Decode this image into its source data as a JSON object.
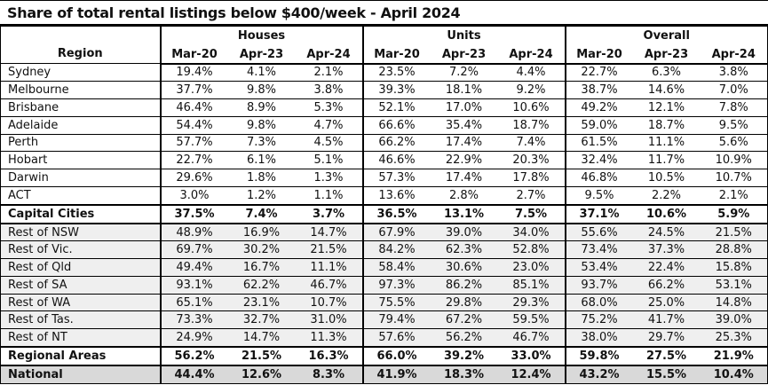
{
  "title": "Share of total rental listings below $400/week - April 2024",
  "colors": {
    "border": "#000000",
    "text": "#111111",
    "shaded_row": "#efefef",
    "national_row": "#d9d9d9",
    "background": "#ffffff"
  },
  "chart_data": {
    "type": "table",
    "title": "Share of total rental listings below $400/week - April 2024",
    "region_header": "Region",
    "groups": [
      "Houses",
      "Units",
      "Overall"
    ],
    "sub_columns": [
      "Mar-20",
      "Apr-23",
      "Apr-24"
    ],
    "rows": [
      {
        "region": "Sydney",
        "style": "normal",
        "houses": [
          "19.4%",
          "4.1%",
          "2.1%"
        ],
        "units": [
          "23.5%",
          "7.2%",
          "4.4%"
        ],
        "overall": [
          "22.7%",
          "6.3%",
          "3.8%"
        ]
      },
      {
        "region": "Melbourne",
        "style": "normal",
        "houses": [
          "37.7%",
          "9.8%",
          "3.8%"
        ],
        "units": [
          "39.3%",
          "18.1%",
          "9.2%"
        ],
        "overall": [
          "38.7%",
          "14.6%",
          "7.0%"
        ]
      },
      {
        "region": "Brisbane",
        "style": "normal",
        "houses": [
          "46.4%",
          "8.9%",
          "5.3%"
        ],
        "units": [
          "52.1%",
          "17.0%",
          "10.6%"
        ],
        "overall": [
          "49.2%",
          "12.1%",
          "7.8%"
        ]
      },
      {
        "region": "Adelaide",
        "style": "normal",
        "houses": [
          "54.4%",
          "9.8%",
          "4.7%"
        ],
        "units": [
          "66.6%",
          "35.4%",
          "18.7%"
        ],
        "overall": [
          "59.0%",
          "18.7%",
          "9.5%"
        ]
      },
      {
        "region": "Perth",
        "style": "normal",
        "houses": [
          "57.7%",
          "7.3%",
          "4.5%"
        ],
        "units": [
          "66.2%",
          "17.4%",
          "7.4%"
        ],
        "overall": [
          "61.5%",
          "11.1%",
          "5.6%"
        ]
      },
      {
        "region": "Hobart",
        "style": "normal",
        "houses": [
          "22.7%",
          "6.1%",
          "5.1%"
        ],
        "units": [
          "46.6%",
          "22.9%",
          "20.3%"
        ],
        "overall": [
          "32.4%",
          "11.7%",
          "10.9%"
        ]
      },
      {
        "region": "Darwin",
        "style": "normal",
        "houses": [
          "29.6%",
          "1.8%",
          "1.3%"
        ],
        "units": [
          "57.3%",
          "17.4%",
          "17.8%"
        ],
        "overall": [
          "46.8%",
          "10.5%",
          "10.7%"
        ]
      },
      {
        "region": "ACT",
        "style": "normal",
        "houses": [
          "3.0%",
          "1.2%",
          "1.1%"
        ],
        "units": [
          "13.6%",
          "2.8%",
          "2.7%"
        ],
        "overall": [
          "9.5%",
          "2.2%",
          "2.1%"
        ]
      },
      {
        "region": "Capital Cities",
        "style": "bold",
        "houses": [
          "37.5%",
          "7.4%",
          "3.7%"
        ],
        "units": [
          "36.5%",
          "13.1%",
          "7.5%"
        ],
        "overall": [
          "37.1%",
          "10.6%",
          "5.9%"
        ]
      },
      {
        "region": "Rest of NSW",
        "style": "shaded",
        "houses": [
          "48.9%",
          "16.9%",
          "14.7%"
        ],
        "units": [
          "67.9%",
          "39.0%",
          "34.0%"
        ],
        "overall": [
          "55.6%",
          "24.5%",
          "21.5%"
        ]
      },
      {
        "region": "Rest of Vic.",
        "style": "shaded",
        "houses": [
          "69.7%",
          "30.2%",
          "21.5%"
        ],
        "units": [
          "84.2%",
          "62.3%",
          "52.8%"
        ],
        "overall": [
          "73.4%",
          "37.3%",
          "28.8%"
        ]
      },
      {
        "region": "Rest of Qld",
        "style": "shaded",
        "houses": [
          "49.4%",
          "16.7%",
          "11.1%"
        ],
        "units": [
          "58.4%",
          "30.6%",
          "23.0%"
        ],
        "overall": [
          "53.4%",
          "22.4%",
          "15.8%"
        ]
      },
      {
        "region": "Rest of SA",
        "style": "shaded",
        "houses": [
          "93.1%",
          "62.2%",
          "46.7%"
        ],
        "units": [
          "97.3%",
          "86.2%",
          "85.1%"
        ],
        "overall": [
          "93.7%",
          "66.2%",
          "53.1%"
        ]
      },
      {
        "region": "Rest of WA",
        "style": "shaded",
        "houses": [
          "65.1%",
          "23.1%",
          "10.7%"
        ],
        "units": [
          "75.5%",
          "29.8%",
          "29.3%"
        ],
        "overall": [
          "68.0%",
          "25.0%",
          "14.8%"
        ]
      },
      {
        "region": "Rest of Tas.",
        "style": "shaded",
        "houses": [
          "73.3%",
          "32.7%",
          "31.0%"
        ],
        "units": [
          "79.4%",
          "67.2%",
          "59.5%"
        ],
        "overall": [
          "75.2%",
          "41.7%",
          "39.0%"
        ]
      },
      {
        "region": "Rest of NT",
        "style": "shaded",
        "houses": [
          "24.9%",
          "14.7%",
          "11.3%"
        ],
        "units": [
          "57.6%",
          "56.2%",
          "46.7%"
        ],
        "overall": [
          "38.0%",
          "29.7%",
          "25.3%"
        ]
      },
      {
        "region": "Regional Areas",
        "style": "bold",
        "houses": [
          "56.2%",
          "21.5%",
          "16.3%"
        ],
        "units": [
          "66.0%",
          "39.2%",
          "33.0%"
        ],
        "overall": [
          "59.8%",
          "27.5%",
          "21.9%"
        ]
      },
      {
        "region": "National",
        "style": "national",
        "houses": [
          "44.4%",
          "12.6%",
          "8.3%"
        ],
        "units": [
          "41.9%",
          "18.3%",
          "12.4%"
        ],
        "overall": [
          "43.2%",
          "15.5%",
          "10.4%"
        ]
      }
    ]
  }
}
